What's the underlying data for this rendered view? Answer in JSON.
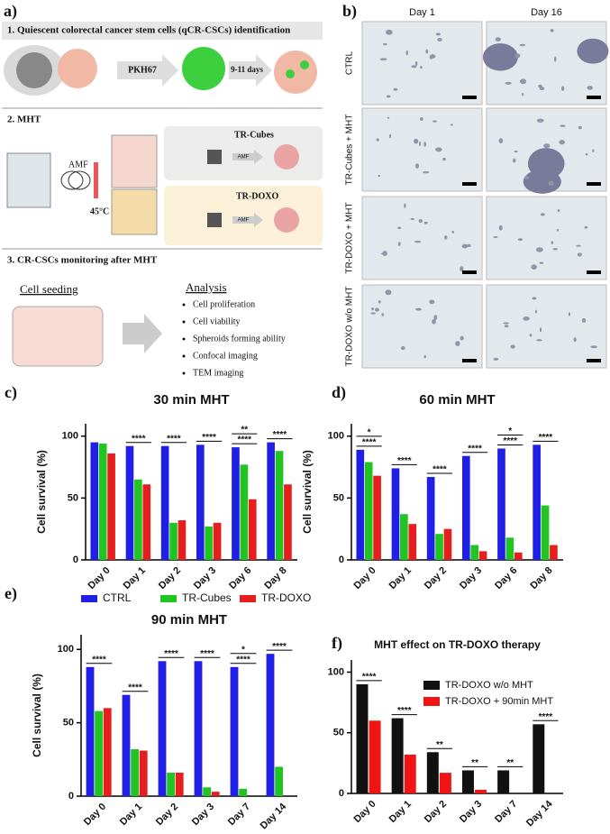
{
  "panel_a": {
    "label": "a)",
    "step1": {
      "title": "1. Quiescent colorectal cancer stem cells (qCR-CSCs) identification",
      "arrow1": "PKH67",
      "arrow2": "9-11 days"
    },
    "step2": {
      "title": "2. MHT",
      "field": "AMF",
      "temperature": "45°C",
      "box1": {
        "title": "TR-Cubes",
        "arrow": "AMF"
      },
      "box2": {
        "title": "TR-DOXO",
        "arrow": "AMF"
      }
    },
    "step3": {
      "title": "3. CR-CSCs monitoring after MHT",
      "left": "Cell seeding",
      "right": "Analysis",
      "items": [
        "Cell proliferation",
        "Cell viability",
        "Spheroids forming ability",
        "Confocal imaging",
        "TEM imaging"
      ]
    }
  },
  "panel_b": {
    "label": "b)",
    "columns": [
      "Day 1",
      "Day 16"
    ],
    "rows": [
      {
        "text": "CTRL",
        "color": "#2020d0"
      },
      {
        "text": "TR-Cubes + MHT",
        "color": "#22b022"
      },
      {
        "text": "TR-DOXO + MHT",
        "color": "#e01818"
      },
      {
        "text": "TR-DOXO w/o MHT",
        "color": "#111111"
      }
    ]
  },
  "chart_data": [
    {
      "type": "bar",
      "panel": "c)",
      "title": "30 min MHT",
      "y_label": "Cell survival (%)",
      "categories": [
        "Day 0",
        "Day 1",
        "Day 2",
        "Day 3",
        "Day 6",
        "Day 8"
      ],
      "series": [
        {
          "name": "CTRL",
          "color": "#1f1fe6",
          "values": [
            95,
            92,
            92,
            93,
            91,
            95
          ]
        },
        {
          "name": "TR-Cubes",
          "color": "#22c422",
          "values": [
            94,
            65,
            30,
            27,
            77,
            88
          ]
        },
        {
          "name": "TR-DOXO",
          "color": "#e61e1e",
          "values": [
            86,
            61,
            32,
            30,
            49,
            61
          ]
        }
      ],
      "significance": [
        [],
        [
          "****"
        ],
        [
          "****"
        ],
        [
          "****"
        ],
        [
          "****",
          "**"
        ],
        [
          "****"
        ]
      ],
      "ylim": [
        0,
        110
      ],
      "yticks": [
        0,
        50,
        100
      ]
    },
    {
      "type": "bar",
      "panel": "d)",
      "title": "60 min MHT",
      "y_label": "Cell survival (%)",
      "categories": [
        "Day 0",
        "Day 1",
        "Day 2",
        "Day 3",
        "Day 6",
        "Day 8"
      ],
      "series": [
        {
          "name": "CTRL",
          "color": "#1f1fe6",
          "values": [
            89,
            74,
            67,
            84,
            90,
            93
          ]
        },
        {
          "name": "TR-Cubes",
          "color": "#22c422",
          "values": [
            79,
            37,
            21,
            12,
            18,
            44
          ]
        },
        {
          "name": "TR-DOXO",
          "color": "#e61e1e",
          "values": [
            68,
            29,
            25,
            7,
            6,
            12
          ]
        }
      ],
      "significance": [
        [
          "****",
          "*"
        ],
        [
          "****"
        ],
        [
          "****"
        ],
        [
          "****"
        ],
        [
          "****",
          "*"
        ],
        [
          "****"
        ]
      ],
      "ylim": [
        0,
        110
      ],
      "yticks": [
        0,
        50,
        100
      ]
    },
    {
      "type": "bar",
      "panel": "e)",
      "title": "90 min MHT",
      "y_label": "Cell survival (%)",
      "categories": [
        "Day 0",
        "Day 1",
        "Day 2",
        "Day 3",
        "Day 7",
        "Day 14"
      ],
      "series": [
        {
          "name": "CTRL",
          "color": "#1f1fe6",
          "values": [
            88,
            69,
            92,
            92,
            88,
            97
          ]
        },
        {
          "name": "TR-Cubes",
          "color": "#22c422",
          "values": [
            58,
            32,
            16,
            6,
            5,
            20
          ]
        },
        {
          "name": "TR-DOXO",
          "color": "#e61e1e",
          "values": [
            60,
            31,
            16,
            3,
            null,
            null
          ]
        }
      ],
      "significance": [
        [
          "****"
        ],
        [
          "****"
        ],
        [
          "****"
        ],
        [
          "****"
        ],
        [
          "****",
          "*"
        ],
        [
          "****"
        ]
      ],
      "legend": "top",
      "ylim": [
        0,
        110
      ],
      "yticks": [
        0,
        50,
        100
      ]
    },
    {
      "type": "bar",
      "panel": "f)",
      "title": "MHT effect on TR-DOXO therapy",
      "categories": [
        "Day 0",
        "Day 1",
        "Day 2",
        "Day 3",
        "Day 7",
        "Day 14"
      ],
      "series": [
        {
          "name": "TR-DOXO w/o MHT",
          "color": "#111111",
          "values": [
            90,
            62,
            34,
            19,
            19,
            57
          ]
        },
        {
          "name": "TR-DOXO + 90min MHT",
          "color": "#f01414",
          "values": [
            60,
            32,
            17,
            3,
            null,
            null
          ]
        }
      ],
      "significance": [
        [
          "****"
        ],
        [
          "****"
        ],
        [
          "**"
        ],
        [
          "**"
        ],
        [
          "**"
        ],
        [
          "****"
        ]
      ],
      "legend": "upper right",
      "ylim": [
        0,
        110
      ],
      "yticks": [
        0,
        50,
        100
      ]
    }
  ]
}
